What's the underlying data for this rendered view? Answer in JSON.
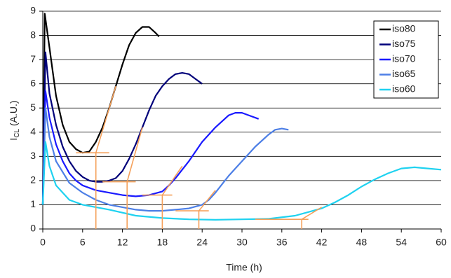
{
  "chart_data": {
    "type": "line",
    "x_label": "Time (h)",
    "y_label": {
      "main": "I",
      "sub": "CL",
      "suffix": " (A.U.)"
    },
    "xlim": [
      0,
      60
    ],
    "xticks": [
      0,
      6,
      12,
      18,
      24,
      30,
      36,
      42,
      48,
      54,
      60
    ],
    "ylim": [
      0,
      9
    ],
    "yticks": [
      0,
      1,
      2,
      3,
      4,
      5,
      6,
      7,
      8,
      9
    ],
    "grid": true,
    "legend": "top-right",
    "series": [
      {
        "name": "iso80",
        "color": "#000000",
        "x": [
          0,
          0.3,
          1,
          2,
          3,
          4,
          5,
          6,
          7,
          8,
          9,
          10,
          11,
          12,
          13,
          14,
          15,
          16,
          17,
          17.5
        ],
        "values": [
          1,
          8.9,
          7.5,
          5.5,
          4.3,
          3.6,
          3.3,
          3.15,
          3.2,
          3.6,
          4.2,
          5.0,
          5.9,
          6.8,
          7.6,
          8.1,
          8.35,
          8.35,
          8.1,
          7.95
        ]
      },
      {
        "name": "iso75",
        "color": "#00007a",
        "x": [
          0,
          0.4,
          1,
          2,
          3,
          4,
          5,
          6,
          7,
          8,
          9,
          10,
          11,
          12,
          13,
          14,
          15,
          16,
          17,
          18,
          19,
          20,
          21,
          22,
          23,
          24
        ],
        "values": [
          1,
          7.3,
          5.6,
          4.3,
          3.4,
          2.8,
          2.4,
          2.15,
          2.0,
          1.95,
          1.95,
          2.0,
          2.1,
          2.4,
          2.9,
          3.5,
          4.2,
          4.9,
          5.5,
          5.9,
          6.2,
          6.4,
          6.45,
          6.4,
          6.2,
          6.0
        ]
      },
      {
        "name": "iso70",
        "color": "#1a1aff",
        "x": [
          0,
          0.4,
          1,
          2,
          3,
          4,
          5,
          6,
          8,
          10,
          12,
          14,
          16,
          18,
          19,
          20,
          22,
          24,
          26,
          28,
          29,
          30,
          31,
          32.5
        ],
        "values": [
          1,
          5.7,
          4.6,
          3.5,
          2.8,
          2.3,
          2.0,
          1.8,
          1.6,
          1.5,
          1.4,
          1.35,
          1.4,
          1.55,
          1.8,
          2.1,
          2.8,
          3.6,
          4.2,
          4.7,
          4.8,
          4.8,
          4.7,
          4.55
        ]
      },
      {
        "name": "iso65",
        "color": "#4d7fe6",
        "x": [
          0,
          0.4,
          1,
          2,
          4,
          6,
          8,
          10,
          12,
          14,
          16,
          18,
          20,
          22,
          24,
          25,
          26,
          28,
          30,
          32,
          34,
          35,
          36,
          37
        ],
        "values": [
          1,
          5.0,
          3.8,
          2.8,
          1.9,
          1.5,
          1.2,
          1.0,
          0.9,
          0.8,
          0.75,
          0.75,
          0.8,
          0.85,
          1.0,
          1.2,
          1.5,
          2.2,
          2.8,
          3.4,
          3.9,
          4.1,
          4.15,
          4.1
        ]
      },
      {
        "name": "iso60",
        "color": "#1fd2f0",
        "x": [
          0,
          0.4,
          1,
          2,
          4,
          6,
          8,
          10,
          14,
          18,
          22,
          26,
          30,
          34,
          38,
          40,
          42,
          44,
          46,
          48,
          50,
          52,
          54,
          56,
          58,
          60
        ],
        "values": [
          1,
          3.6,
          2.6,
          1.8,
          1.2,
          1.0,
          0.9,
          0.8,
          0.55,
          0.45,
          0.4,
          0.38,
          0.4,
          0.42,
          0.55,
          0.7,
          0.85,
          1.1,
          1.4,
          1.75,
          2.05,
          2.3,
          2.5,
          2.55,
          2.5,
          2.45
        ]
      }
    ],
    "guides": {
      "color": "#f5a05a",
      "lines": [
        {
          "x": [
            5,
            10,
            null,
            11,
            8,
            8
          ],
          "values": [
            3.15,
            3.15,
            null,
            5.9,
            3.15,
            0
          ]
        },
        {
          "x": [
            9,
            14,
            null,
            15,
            12.7,
            12.7
          ],
          "values": [
            1.95,
            1.95,
            null,
            4.2,
            1.95,
            0
          ]
        },
        {
          "x": [
            15,
            19.5,
            null,
            21,
            18,
            18
          ],
          "values": [
            1.4,
            1.4,
            null,
            2.6,
            1.4,
            0
          ]
        },
        {
          "x": [
            20,
            25,
            null,
            26,
            23.5,
            23.5
          ],
          "values": [
            0.75,
            0.75,
            null,
            1.6,
            0.75,
            0
          ]
        },
        {
          "x": [
            32,
            40,
            null,
            42,
            39,
            39
          ],
          "values": [
            0.4,
            0.4,
            null,
            0.9,
            0.4,
            0
          ]
        }
      ]
    }
  }
}
